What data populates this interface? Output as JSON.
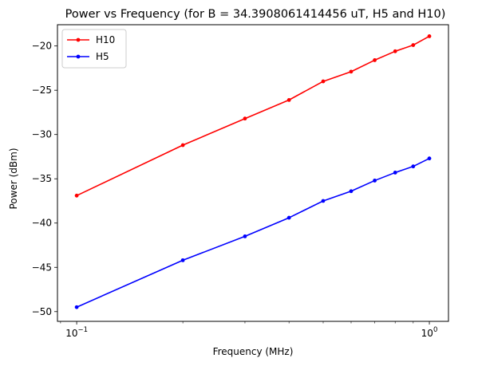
{
  "chart_data": {
    "type": "line",
    "title": "Power vs Frequency (for B = 34.3908061414456 uT, H5 and H10)",
    "xlabel": "Frequency (MHz)",
    "ylabel": "Power (dBm)",
    "xscale": "log",
    "xlim": [
      0.0882,
      1.133
    ],
    "ylim": [
      -51.1,
      -17.6
    ],
    "grid": false,
    "legend_position": "top-left",
    "x_ticks": [
      {
        "value": 0.1,
        "label": "10",
        "exp": "−1"
      },
      {
        "value": 1.0,
        "label": "10",
        "exp": "0"
      }
    ],
    "y_ticks": [
      {
        "value": -50,
        "label": "−50"
      },
      {
        "value": -45,
        "label": "−45"
      },
      {
        "value": -40,
        "label": "−40"
      },
      {
        "value": -35,
        "label": "−35"
      },
      {
        "value": -30,
        "label": "−30"
      },
      {
        "value": -25,
        "label": "−25"
      },
      {
        "value": -20,
        "label": "−20"
      }
    ],
    "x": [
      0.1,
      0.2,
      0.3,
      0.4,
      0.5,
      0.6,
      0.7,
      0.8,
      0.9,
      1.0
    ],
    "series": [
      {
        "name": "H10",
        "color": "#ff0000",
        "values": [
          -36.9,
          -31.2,
          -28.2,
          -26.1,
          -24.0,
          -22.9,
          -21.6,
          -20.6,
          -19.9,
          -18.9
        ]
      },
      {
        "name": "H5",
        "color": "#0000ff",
        "values": [
          -49.5,
          -44.2,
          -41.5,
          -39.4,
          -37.5,
          -36.4,
          -35.2,
          -34.3,
          -33.6,
          -32.7
        ]
      }
    ]
  }
}
